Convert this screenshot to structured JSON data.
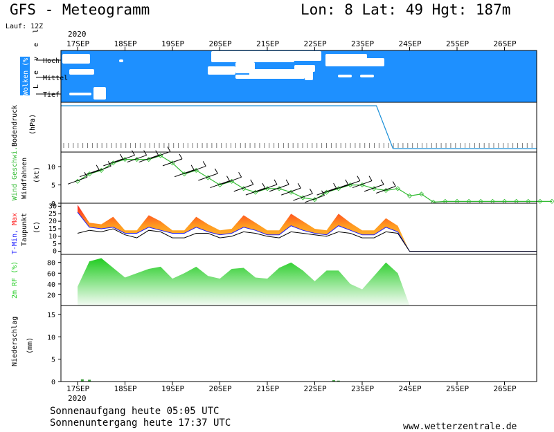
{
  "header": {
    "title": "GFS - Meteogramm",
    "location": "Lon: 8 Lat: 49 Hgt: 187m",
    "run": "Lauf: 12Z"
  },
  "footer": {
    "sunrise": "Sonnenaufgang heute 05:05 UTC",
    "sunset": "Sonnenuntergang heute 17:37 UTC",
    "source": "www.wetterzentrale.de"
  },
  "colors": {
    "cloud_bg": "#1e90ff",
    "pressure_line": "#1a8fd8",
    "wind": "#33bb33",
    "tmax": "#ff2020",
    "tmin": "#2020ff",
    "dewpoint": "#000000",
    "rh": "#22cc22",
    "precip": "#3da23d"
  },
  "chart_data": [
    {
      "type": "area",
      "panel": "clouds",
      "ylabel": "Wolken (%)",
      "levels": [
        "Hoch",
        "Mittel",
        "Tief"
      ],
      "axis_side_label": "L e v e l",
      "year": "2020",
      "categories": [
        "17SEP",
        "18SEP",
        "19SEP",
        "20SEP",
        "21SEP",
        "22SEP",
        "23SEP",
        "24SEP",
        "25SEP",
        "26SEP"
      ],
      "series": [
        {
          "name": "Hoch",
          "values": [
            0,
            0,
            0,
            60,
            40,
            80,
            80,
            0,
            0,
            0
          ]
        },
        {
          "name": "Mittel",
          "values": [
            20,
            0,
            10,
            40,
            30,
            40,
            20,
            0,
            0,
            0
          ]
        },
        {
          "name": "Tief",
          "values": [
            30,
            0,
            0,
            0,
            0,
            0,
            0,
            0,
            0,
            0
          ]
        }
      ]
    },
    {
      "type": "line",
      "panel": "pressure",
      "ylabel": "Bodendruck",
      "unit": "(hPa)",
      "note": "values not labeled; high flat level until 23SEP, drops to low level after"
    },
    {
      "type": "line",
      "panel": "wind",
      "ylabel": "Wind Geschwi.",
      "ylabel2": "Windfahnen",
      "unit": "(kt)",
      "yticks": [
        0,
        5,
        10
      ],
      "ylim": [
        0,
        14
      ],
      "x": [
        0,
        0.25,
        0.5,
        0.75,
        1,
        1.25,
        1.5,
        1.75,
        2,
        2.25,
        2.5,
        2.75,
        3,
        3.25,
        3.5,
        3.75,
        4,
        4.25,
        4.5,
        4.75,
        5,
        5.25,
        5.5,
        5.75,
        6,
        6.25,
        6.5,
        6.75,
        7,
        7.25,
        7.5,
        7.75,
        8,
        8.25,
        8.5,
        8.75,
        9,
        9.25,
        9.5,
        9.75,
        10
      ],
      "values": [
        6,
        8,
        9,
        11,
        12,
        12,
        12,
        13,
        11,
        8,
        9,
        7,
        5,
        6,
        4,
        3,
        4,
        4,
        3,
        1.5,
        1,
        3,
        4,
        5,
        5,
        4,
        3.5,
        4,
        2,
        2.5,
        0.3,
        0.5,
        0.5,
        0.5,
        0.5,
        0.5,
        0.5,
        0.5,
        0.5,
        0.5,
        0.5
      ]
    },
    {
      "type": "area",
      "panel": "temperature",
      "ylabel": "T-Min, Max",
      "ylabel2": "Taupunkt",
      "unit": "(C)",
      "yticks": [
        0,
        5,
        10,
        15,
        20,
        25,
        30
      ],
      "ylim": [
        -2,
        32
      ],
      "x": [
        0,
        0.25,
        0.5,
        0.75,
        1,
        1.25,
        1.5,
        1.75,
        2,
        2.25,
        2.5,
        2.75,
        3,
        3.25,
        3.5,
        3.75,
        4,
        4.25,
        4.5,
        4.75,
        5,
        5.25,
        5.5,
        5.75,
        6,
        6.25,
        6.5,
        6.75,
        7
      ],
      "series": [
        {
          "name": "T-Max",
          "values": [
            31,
            19,
            18,
            23,
            14,
            14,
            24,
            20,
            14,
            14,
            23,
            18,
            14,
            15,
            24,
            19,
            14,
            14,
            25,
            20,
            15,
            14,
            25,
            19,
            14,
            14,
            22,
            17,
            0
          ]
        },
        {
          "name": "T-Min",
          "values": [
            26,
            16,
            15,
            16,
            12,
            12,
            16,
            14,
            12,
            12,
            16,
            13,
            11,
            12,
            16,
            14,
            11,
            11,
            17,
            14,
            12,
            11,
            17,
            14,
            11,
            11,
            16,
            13,
            0
          ]
        },
        {
          "name": "Taupunkt",
          "values": [
            12,
            14,
            13,
            15,
            11,
            9,
            14,
            13,
            9,
            9,
            12,
            12,
            9,
            10,
            13,
            12,
            10,
            9,
            13,
            12,
            11,
            10,
            13,
            12,
            9,
            9,
            13,
            12,
            0
          ]
        }
      ]
    },
    {
      "type": "area",
      "panel": "humidity",
      "ylabel": "2m RF (%)",
      "yticks": [
        20,
        40,
        60,
        80
      ],
      "ylim": [
        0,
        95
      ],
      "x": [
        0,
        0.25,
        0.5,
        0.75,
        1,
        1.25,
        1.5,
        1.75,
        2,
        2.25,
        2.5,
        2.75,
        3,
        3.25,
        3.5,
        3.75,
        4,
        4.25,
        4.5,
        4.75,
        5,
        5.25,
        5.5,
        5.75,
        6,
        6.25,
        6.5,
        6.75,
        7
      ],
      "values": [
        35,
        82,
        88,
        70,
        52,
        60,
        68,
        72,
        50,
        60,
        72,
        55,
        50,
        68,
        70,
        52,
        50,
        70,
        80,
        65,
        45,
        65,
        65,
        40,
        30,
        55,
        80,
        60,
        0
      ]
    },
    {
      "type": "bar",
      "panel": "precip",
      "ylabel": "Niederschlag",
      "unit": "(mm)",
      "yticks": [
        0,
        5,
        10,
        15
      ],
      "ylim": [
        0,
        17
      ],
      "x": [
        0.1,
        0.25,
        5.4,
        5.5
      ],
      "values": [
        0.5,
        0.4,
        0.3,
        0.2
      ]
    }
  ]
}
